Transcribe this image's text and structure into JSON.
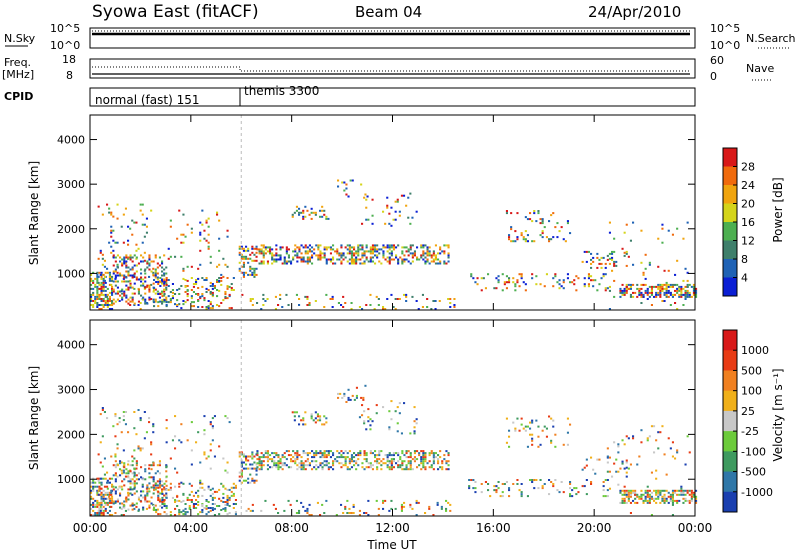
{
  "header": {
    "left_title": "Syowa East (fitACF)",
    "center_title": "Beam 04",
    "right_title": "24/Apr/2010"
  },
  "panels": {
    "nsky": {
      "label": "N.Sky",
      "ytick_top": "10^5",
      "ytick_bottom": "10^0",
      "right_label": "N.Search",
      "right_ytick_top": "10^5",
      "right_ytick_bottom": "10^0"
    },
    "freq": {
      "label": "Freq.",
      "unit": "[MHz]",
      "ytick_top": "18",
      "ytick_bottom": "8",
      "right_label": "Nave",
      "right_ytick_top": "60",
      "right_ytick_bottom": "0"
    },
    "cpid": {
      "label": "CPID",
      "modes": [
        {
          "name": "normal (fast) 151",
          "start": "00:00",
          "end": "06:00"
        },
        {
          "name": "themis 3300",
          "start": "06:00",
          "end": "24:00"
        }
      ]
    }
  },
  "chart_data": [
    {
      "type": "heatmap",
      "title": "",
      "xlabel": "",
      "ylabel": "Slant Range [km]",
      "x_ticks": [
        "00:00",
        "04:00",
        "08:00",
        "12:00",
        "16:00",
        "20:00",
        "00:00"
      ],
      "xlim_hours": [
        0,
        24
      ],
      "ylim": [
        180,
        4550
      ],
      "y_ticks": [
        1000,
        2000,
        3000,
        4000
      ],
      "colorbar": {
        "label": "Power [dB]",
        "ticks": [
          4,
          8,
          12,
          16,
          20,
          24,
          28
        ]
      },
      "colors": [
        "#0b1fd4",
        "#1f62b5",
        "#3e7f6b",
        "#4caf50",
        "#d4d41a",
        "#f0a40e",
        "#f06a0c",
        "#d81818"
      ]
    },
    {
      "type": "heatmap",
      "title": "",
      "xlabel": "Time UT",
      "ylabel": "Slant Range [km]",
      "x_ticks": [
        "00:00",
        "04:00",
        "08:00",
        "12:00",
        "16:00",
        "20:00",
        "00:00"
      ],
      "xlim_hours": [
        0,
        24
      ],
      "ylim": [
        180,
        4550
      ],
      "y_ticks": [
        1000,
        2000,
        3000,
        4000
      ],
      "colorbar": {
        "label": "Velocity [m s⁻¹]",
        "ticks": [
          1000,
          500,
          100,
          25,
          -25,
          -100,
          -500,
          -1000
        ]
      },
      "colors": [
        "#1a3fb0",
        "#2f77a8",
        "#3e9a5f",
        "#6ccb3b",
        "#c8c8c8",
        "#f0b01a",
        "#f08020",
        "#e83b14",
        "#d81818"
      ]
    }
  ]
}
